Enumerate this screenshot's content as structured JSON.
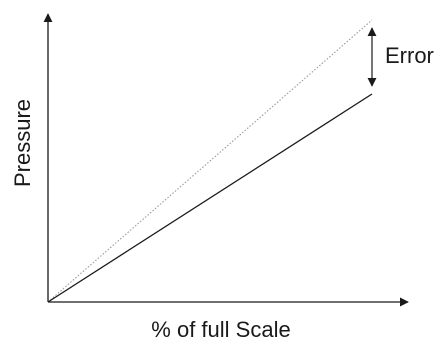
{
  "diagram": {
    "y_axis_label": "Pressure",
    "x_axis_label": "% of full Scale",
    "error_label": "Error",
    "line_color": "#1a1a1a",
    "reference_line_color": "#9a9a9a",
    "reference_line_style": "dotted"
  }
}
